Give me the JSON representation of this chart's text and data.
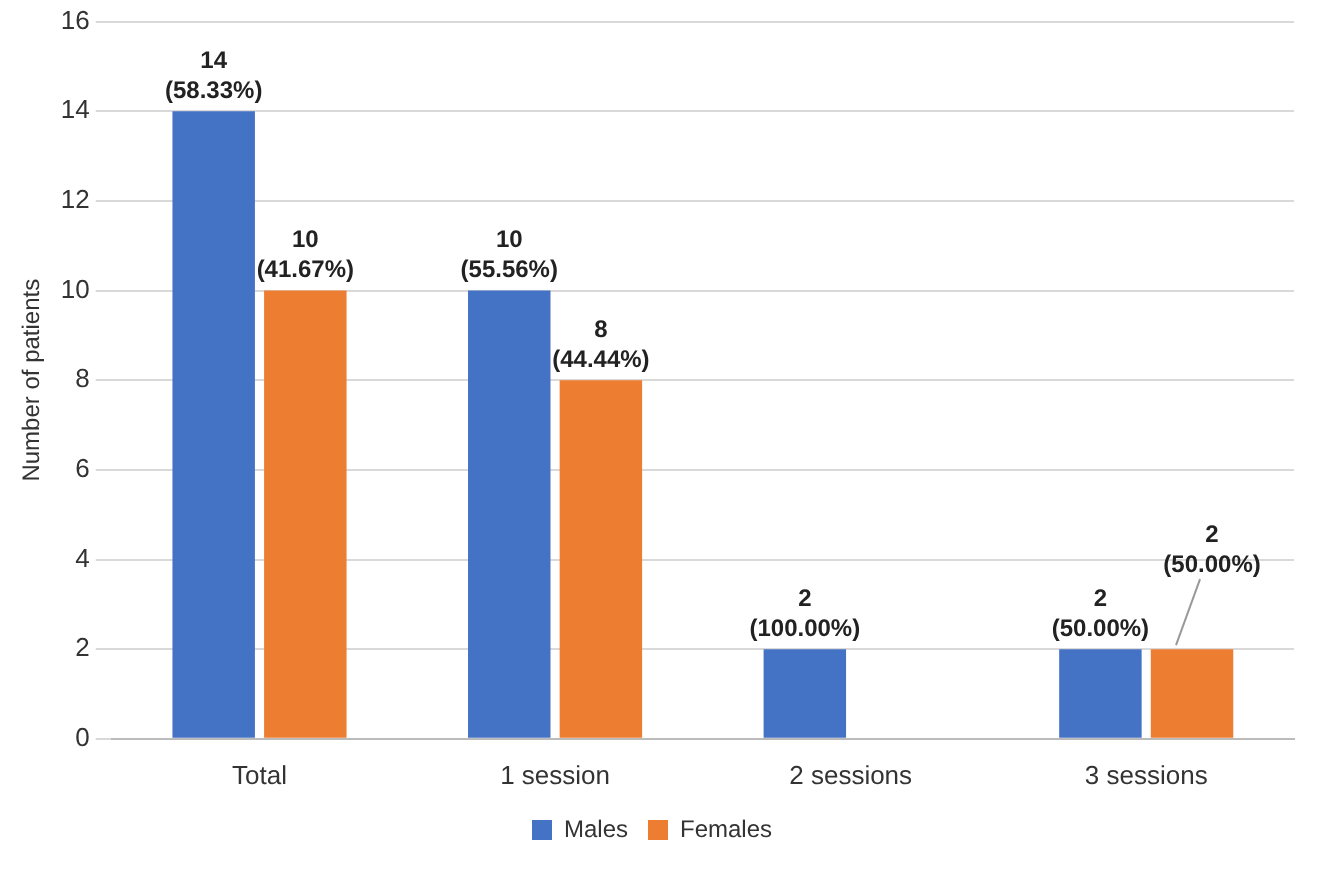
{
  "chart_data": {
    "type": "bar",
    "ylabel": "Number of patients",
    "categories": [
      "Total",
      "1 session",
      "2 sessions",
      "3 sessions"
    ],
    "series": [
      {
        "name": "Males",
        "color": "#4472c4",
        "values": [
          14,
          10,
          2,
          2
        ],
        "value_labels": [
          "14\n(58.33%)",
          "10\n(55.56%)",
          "2\n(100.00%)",
          "2\n(50.00%)"
        ]
      },
      {
        "name": "Females",
        "color": "#ed7d31",
        "values": [
          10,
          8,
          null,
          2
        ],
        "value_labels": [
          "10\n(41.67%)",
          "8\n(44.44%)",
          null,
          "2\n(50.00%)"
        ]
      }
    ],
    "ylim": [
      0,
      16
    ],
    "yticks": [
      0,
      2,
      4,
      6,
      8,
      10,
      12,
      14,
      16
    ],
    "grid": "y",
    "legend": "bottom"
  }
}
